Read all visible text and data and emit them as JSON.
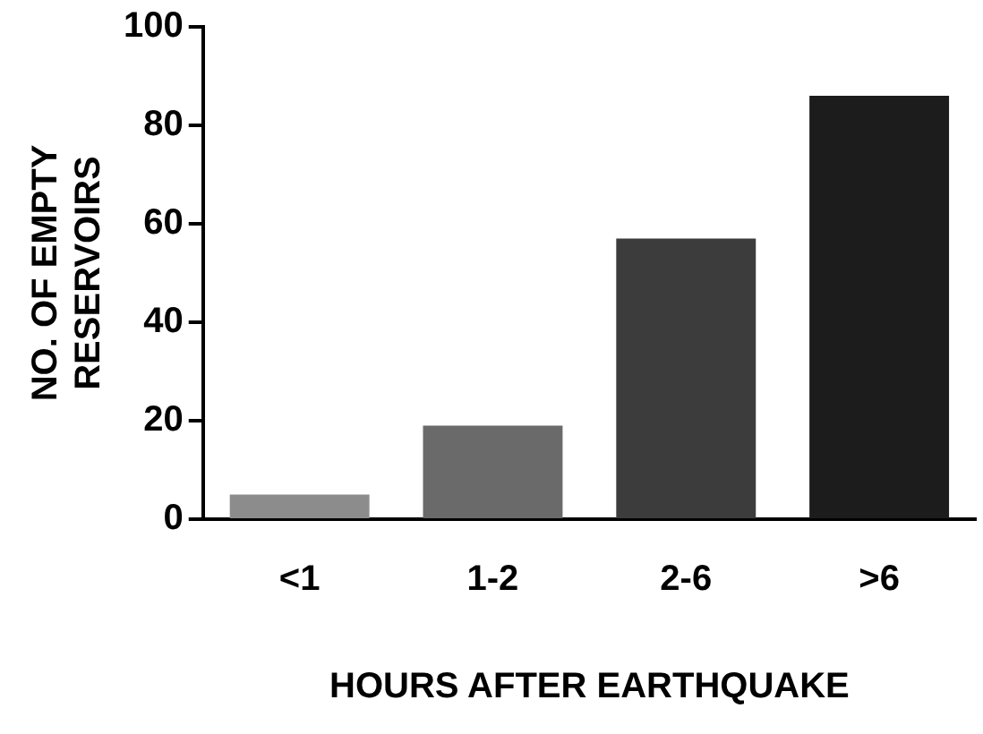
{
  "chart_data": {
    "type": "bar",
    "xlabel": "HOURS AFTER EARTHQUAKE",
    "ylabel": "NO. OF EMPTY\nRESERVOIRS",
    "categories": [
      "<1",
      "1-2",
      "2-6",
      ">6"
    ],
    "values": [
      5,
      19,
      57,
      86
    ],
    "colors": [
      "#8c8c8c",
      "#6a6a6a",
      "#3c3c3c",
      "#1c1c1c"
    ],
    "ylim": [
      0,
      100
    ],
    "yticks": [
      0,
      20,
      40,
      60,
      80,
      100
    ],
    "grid": false,
    "legend": false
  }
}
